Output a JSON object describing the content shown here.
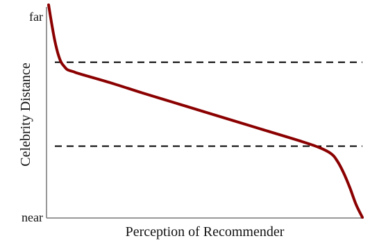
{
  "chart_data": {
    "type": "line",
    "title": "",
    "xlabel": "Perception of Recommender",
    "ylabel": "Celebrity Distance",
    "y_tick_labels": {
      "top": "far",
      "bottom": "near"
    },
    "xlim": [
      0,
      1
    ],
    "ylim": [
      0,
      1
    ],
    "grid": false,
    "legend": "none",
    "series": [
      {
        "color": "#8b0000",
        "x": [
          0.0,
          0.01,
          0.02,
          0.03,
          0.04,
          0.05,
          0.06,
          0.08,
          0.1,
          0.2,
          0.3,
          0.4,
          0.5,
          0.6,
          0.7,
          0.8,
          0.86,
          0.9,
          0.92,
          0.94,
          0.96,
          0.98,
          1.0
        ],
        "y": [
          1.0,
          0.91,
          0.83,
          0.77,
          0.73,
          0.71,
          0.695,
          0.685,
          0.675,
          0.632,
          0.585,
          0.54,
          0.495,
          0.45,
          0.405,
          0.36,
          0.33,
          0.3,
          0.265,
          0.21,
          0.14,
          0.06,
          0.0
        ]
      }
    ],
    "reference_lines": [
      {
        "y": 0.73,
        "style": "dashed",
        "color": "#000000"
      },
      {
        "y": 0.335,
        "style": "dashed",
        "color": "#000000"
      }
    ]
  }
}
